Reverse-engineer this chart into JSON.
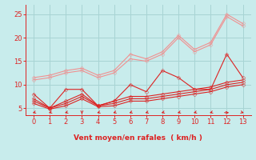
{
  "bg_color": "#c8ecec",
  "grid_color": "#a8d4d4",
  "light_red": "#f09090",
  "dark_red": "#dd2222",
  "xlabel": "Vent moyen/en rafales  ( km/h )",
  "xlim": [
    -0.5,
    13.5
  ],
  "ylim": [
    3.5,
    27
  ],
  "yticks": [
    5,
    10,
    15,
    20,
    25
  ],
  "xticks": [
    0,
    1,
    2,
    3,
    4,
    5,
    6,
    7,
    8,
    9,
    10,
    11,
    12,
    13
  ],
  "line1_x": [
    0,
    1,
    2,
    3,
    4,
    5,
    6,
    7,
    8,
    9,
    10,
    11,
    12,
    13
  ],
  "line1_y": [
    11.5,
    12.0,
    13.0,
    13.5,
    12.0,
    13.0,
    16.5,
    15.5,
    17.0,
    20.5,
    17.5,
    19.0,
    25.0,
    23.0
  ],
  "line2_x": [
    0,
    1,
    2,
    3,
    4,
    5,
    6,
    7,
    8,
    9,
    10,
    11,
    12,
    13
  ],
  "line2_y": [
    11.0,
    11.5,
    12.5,
    13.0,
    11.5,
    12.5,
    15.5,
    15.0,
    16.5,
    20.0,
    17.0,
    18.5,
    24.5,
    22.5
  ],
  "line3_x": [
    0,
    1,
    2,
    3,
    4,
    5,
    6,
    7,
    8,
    9,
    10,
    11,
    12,
    13
  ],
  "line3_y": [
    8.0,
    5.0,
    9.0,
    9.0,
    5.5,
    6.5,
    10.0,
    8.5,
    13.0,
    11.5,
    9.0,
    9.0,
    16.5,
    11.5
  ],
  "line4_x": [
    0,
    1,
    2,
    3,
    4,
    5,
    6,
    7,
    8,
    9,
    10,
    11,
    12,
    13
  ],
  "line4_y": [
    7.0,
    5.0,
    6.5,
    8.0,
    5.5,
    6.5,
    7.5,
    7.5,
    8.0,
    8.5,
    9.0,
    9.5,
    10.5,
    11.0
  ],
  "line5_x": [
    0,
    1,
    2,
    3,
    4,
    5,
    6,
    7,
    8,
    9,
    10,
    11,
    12,
    13
  ],
  "line5_y": [
    6.5,
    5.0,
    6.0,
    7.5,
    5.5,
    6.0,
    7.0,
    7.0,
    7.5,
    8.0,
    8.5,
    9.0,
    10.0,
    10.5
  ],
  "line6_x": [
    0,
    1,
    2,
    3,
    4,
    5,
    6,
    7,
    8,
    9,
    10,
    11,
    12,
    13
  ],
  "line6_y": [
    6.0,
    4.8,
    5.5,
    7.0,
    5.3,
    5.5,
    6.5,
    6.5,
    7.0,
    7.5,
    8.0,
    8.5,
    9.5,
    10.0
  ],
  "arrow_angles_deg": [
    225,
    225,
    225,
    180,
    225,
    225,
    225,
    225,
    225,
    225,
    225,
    225,
    90,
    135
  ]
}
